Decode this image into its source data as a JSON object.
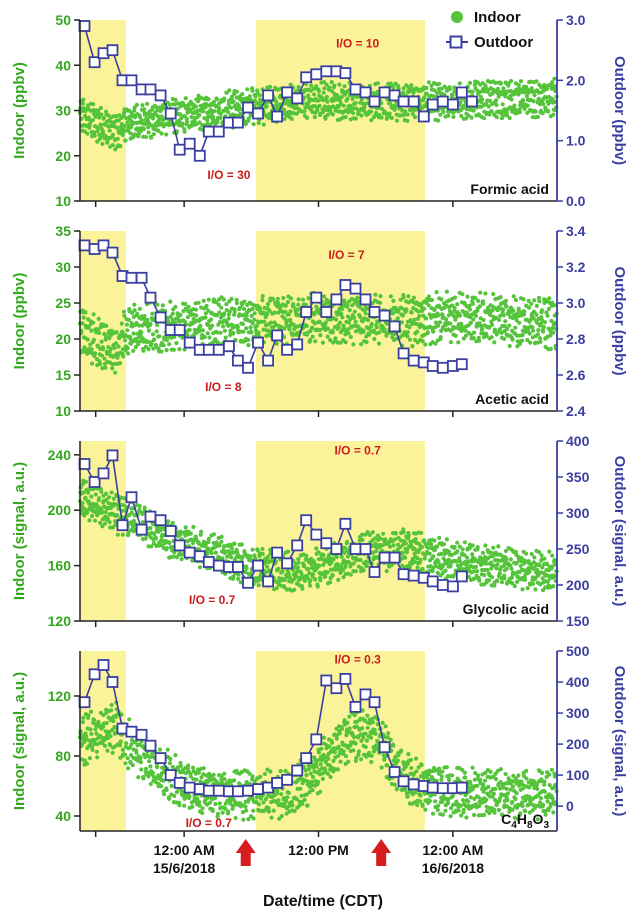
{
  "colors": {
    "indoor": "#55c43a",
    "outdoor": "#3a3fa0",
    "highlight": "#fbf39a",
    "annotation": "#cc1b1b",
    "arrow": "#d61e1e",
    "axis": "#222222",
    "left_axis_text": "#33a81e",
    "right_axis_text": "#3a3fa0"
  },
  "legend": {
    "indoor_label": "Indoor",
    "outdoor_label": "Outdoor",
    "placement": "top-right"
  },
  "shared_x": {
    "label": "Date/time (CDT)",
    "range_hours": [
      -9.3,
      33.3
    ],
    "highlight_spans": [
      [
        -9.3,
        -5.2
      ],
      [
        6.4,
        21.5
      ]
    ],
    "ticks": [
      {
        "hours": -7.9,
        "label_time": "",
        "label_date": ""
      },
      {
        "hours": 0,
        "label_time": "12:00 AM",
        "label_date": "15/6/2018"
      },
      {
        "hours": 12,
        "label_time": "12:00 PM",
        "label_date": ""
      },
      {
        "hours": 24,
        "label_time": "12:00 AM",
        "label_date": "16/6/2018"
      }
    ],
    "arrows_hours": [
      5.5,
      17.6
    ]
  },
  "chart_data": [
    {
      "type": "scatter",
      "compound": "Formic acid",
      "left_axis": {
        "label": "Indoor (ppbv)",
        "range": [
          10,
          50
        ],
        "ticks": [
          "10",
          "20",
          "30",
          "40",
          "50"
        ]
      },
      "right_axis": {
        "label": "Outdoor (ppbv)",
        "range": [
          0.0,
          3.0
        ],
        "ticks": [
          "0.0",
          "1.0",
          "2.0",
          "3.0"
        ]
      },
      "annotations": [
        {
          "text": "I/O = 10",
          "x_hours": 15.5,
          "value": 45
        },
        {
          "text": "I/O = 30",
          "x_hours": 4.0,
          "value": 16
        }
      ],
      "indoor_trend": [
        [
          -9.3,
          29
        ],
        [
          -6.0,
          25
        ],
        [
          -5.2,
          27
        ],
        [
          0,
          29
        ],
        [
          6,
          31
        ],
        [
          12,
          32
        ],
        [
          18,
          32
        ],
        [
          24,
          32
        ],
        [
          33.3,
          33
        ]
      ],
      "indoor_spread": 3.5,
      "outdoor_series": [
        [
          -8.9,
          2.9
        ],
        [
          -8.0,
          2.3
        ],
        [
          -7.2,
          2.45
        ],
        [
          -6.4,
          2.5
        ],
        [
          -5.5,
          2.0
        ],
        [
          -4.7,
          2.0
        ],
        [
          -3.8,
          1.85
        ],
        [
          -3.0,
          1.85
        ],
        [
          -2.1,
          1.75
        ],
        [
          -1.2,
          1.45
        ],
        [
          -0.4,
          0.85
        ],
        [
          0.5,
          0.95
        ],
        [
          1.4,
          0.75
        ],
        [
          2.2,
          1.15
        ],
        [
          3.1,
          1.15
        ],
        [
          4.0,
          1.3
        ],
        [
          4.8,
          1.3
        ],
        [
          5.7,
          1.55
        ],
        [
          6.6,
          1.45
        ],
        [
          7.5,
          1.75
        ],
        [
          8.3,
          1.4
        ],
        [
          9.2,
          1.8
        ],
        [
          10.1,
          1.7
        ],
        [
          10.9,
          2.05
        ],
        [
          11.8,
          2.1
        ],
        [
          12.7,
          2.15
        ],
        [
          13.6,
          2.15
        ],
        [
          14.4,
          2.12
        ],
        [
          15.3,
          1.85
        ],
        [
          16.2,
          1.8
        ],
        [
          17.0,
          1.65
        ],
        [
          17.9,
          1.8
        ],
        [
          18.8,
          1.75
        ],
        [
          19.6,
          1.65
        ],
        [
          20.5,
          1.65
        ],
        [
          21.4,
          1.4
        ],
        [
          22.2,
          1.6
        ],
        [
          23.1,
          1.65
        ],
        [
          24.0,
          1.6
        ],
        [
          24.8,
          1.8
        ],
        [
          25.7,
          1.65
        ]
      ]
    },
    {
      "type": "scatter",
      "compound": "Acetic acid",
      "left_axis": {
        "label": "Indoor (ppbv)",
        "range": [
          10,
          35
        ],
        "ticks": [
          "10",
          "15",
          "20",
          "25",
          "30",
          "35"
        ]
      },
      "right_axis": {
        "label": "Outdoor (ppbv)",
        "range": [
          2.4,
          3.4
        ],
        "ticks": [
          "2.4",
          "2.6",
          "2.8",
          "3.0",
          "3.2",
          "3.4"
        ]
      },
      "annotations": [
        {
          "text": "I/O = 7",
          "x_hours": 14.5,
          "value": 31.8
        },
        {
          "text": "I/O = 8",
          "x_hours": 3.5,
          "value": 13.5
        }
      ],
      "indoor_trend": [
        [
          -9.3,
          21
        ],
        [
          -6.0,
          18
        ],
        [
          -5.2,
          21
        ],
        [
          0,
          22
        ],
        [
          6,
          22.5
        ],
        [
          12,
          23
        ],
        [
          18,
          22.5
        ],
        [
          24,
          23
        ],
        [
          33.3,
          22
        ]
      ],
      "indoor_spread": 3.0,
      "outdoor_series": [
        [
          -8.9,
          3.32
        ],
        [
          -8.0,
          3.3
        ],
        [
          -7.2,
          3.32
        ],
        [
          -6.4,
          3.28
        ],
        [
          -5.5,
          3.15
        ],
        [
          -4.7,
          3.14
        ],
        [
          -3.8,
          3.14
        ],
        [
          -3.0,
          3.03
        ],
        [
          -2.1,
          2.92
        ],
        [
          -1.2,
          2.85
        ],
        [
          -0.4,
          2.85
        ],
        [
          0.5,
          2.78
        ],
        [
          1.4,
          2.74
        ],
        [
          2.2,
          2.74
        ],
        [
          3.1,
          2.74
        ],
        [
          4.0,
          2.76
        ],
        [
          4.8,
          2.68
        ],
        [
          5.7,
          2.64
        ],
        [
          6.6,
          2.78
        ],
        [
          7.5,
          2.68
        ],
        [
          8.3,
          2.82
        ],
        [
          9.2,
          2.74
        ],
        [
          10.1,
          2.77
        ],
        [
          10.9,
          2.95
        ],
        [
          11.8,
          3.03
        ],
        [
          12.7,
          2.95
        ],
        [
          13.6,
          3.02
        ],
        [
          14.4,
          3.1
        ],
        [
          15.3,
          3.08
        ],
        [
          16.2,
          3.02
        ],
        [
          17.0,
          2.95
        ],
        [
          17.9,
          2.93
        ],
        [
          18.8,
          2.87
        ],
        [
          19.6,
          2.72
        ],
        [
          20.5,
          2.68
        ],
        [
          21.4,
          2.67
        ],
        [
          22.2,
          2.65
        ],
        [
          23.1,
          2.64
        ],
        [
          24.0,
          2.65
        ],
        [
          24.8,
          2.66
        ]
      ]
    },
    {
      "type": "scatter",
      "compound": "Glycolic acid",
      "left_axis": {
        "label": "Indoor (signal, a.u.)",
        "range": [
          120,
          250
        ],
        "ticks": [
          "120",
          "160",
          "200",
          "240"
        ]
      },
      "right_axis": {
        "label": "Outdoor (signal, a.u.)",
        "range": [
          150,
          400
        ],
        "ticks": [
          "150",
          "200",
          "250",
          "300",
          "350",
          "400"
        ]
      },
      "annotations": [
        {
          "text": "I/O = 0.7",
          "x_hours": 15.5,
          "value": 244
        },
        {
          "text": "I/O = 0.7",
          "x_hours": 2.5,
          "value": 136
        }
      ],
      "indoor_trend": [
        [
          -9.3,
          208
        ],
        [
          -5.2,
          195
        ],
        [
          0,
          175
        ],
        [
          6,
          160
        ],
        [
          10,
          155
        ],
        [
          13,
          160
        ],
        [
          16,
          170
        ],
        [
          20,
          172
        ],
        [
          24,
          163
        ],
        [
          33.3,
          155
        ]
      ],
      "indoor_spread": 12,
      "outdoor_series": [
        [
          -8.9,
          368
        ],
        [
          -8.0,
          343
        ],
        [
          -7.2,
          355
        ],
        [
          -6.4,
          380
        ],
        [
          -5.5,
          283
        ],
        [
          -4.7,
          322
        ],
        [
          -3.8,
          277
        ],
        [
          -3.0,
          295
        ],
        [
          -2.1,
          290
        ],
        [
          -1.2,
          275
        ],
        [
          -0.4,
          255
        ],
        [
          0.5,
          245
        ],
        [
          1.4,
          240
        ],
        [
          2.2,
          232
        ],
        [
          3.1,
          227
        ],
        [
          4.0,
          225
        ],
        [
          4.8,
          225
        ],
        [
          5.7,
          203
        ],
        [
          6.6,
          227
        ],
        [
          7.5,
          205
        ],
        [
          8.3,
          245
        ],
        [
          9.2,
          230
        ],
        [
          10.1,
          255
        ],
        [
          10.9,
          290
        ],
        [
          11.8,
          270
        ],
        [
          12.7,
          258
        ],
        [
          13.6,
          250
        ],
        [
          14.4,
          285
        ],
        [
          15.3,
          250
        ],
        [
          16.2,
          250
        ],
        [
          17.0,
          218
        ],
        [
          17.9,
          238
        ],
        [
          18.8,
          238
        ],
        [
          19.6,
          215
        ],
        [
          20.5,
          213
        ],
        [
          21.4,
          210
        ],
        [
          22.2,
          205
        ],
        [
          23.1,
          200
        ],
        [
          24.0,
          198
        ],
        [
          24.8,
          212
        ]
      ]
    },
    {
      "type": "scatter",
      "compound": "C4H8O3",
      "compound_formula": {
        "base": "C",
        "parts": [
          [
            "4",
            "H"
          ],
          [
            "8",
            "O"
          ],
          [
            "3",
            ""
          ]
        ]
      },
      "left_axis": {
        "label": "Indoor (signal, a.u.)",
        "range": [
          30,
          150
        ],
        "ticks": [
          "40",
          "80",
          "120"
        ]
      },
      "right_axis": {
        "label": "Outdoor (signal, a.u.)",
        "range": [
          -80,
          500
        ],
        "ticks": [
          "0",
          "100",
          "200",
          "300",
          "400",
          "500"
        ]
      },
      "annotations": [
        {
          "text": "I/O = 0.3",
          "x_hours": 15.5,
          "value": 145
        },
        {
          "text": "I/O = 0.7",
          "x_hours": 2.2,
          "value": 36
        }
      ],
      "indoor_trend": [
        [
          -9.3,
          90
        ],
        [
          -6.0,
          100
        ],
        [
          -5.2,
          90
        ],
        [
          -2,
          70
        ],
        [
          0,
          60
        ],
        [
          4,
          55
        ],
        [
          9,
          55
        ],
        [
          11,
          62
        ],
        [
          13,
          80
        ],
        [
          14.5,
          92
        ],
        [
          16,
          95
        ],
        [
          17.5,
          90
        ],
        [
          19,
          70
        ],
        [
          21,
          60
        ],
        [
          24,
          55
        ],
        [
          33.3,
          55
        ]
      ],
      "indoor_spread": 14,
      "outdoor_series": [
        [
          -8.9,
          335
        ],
        [
          -8.0,
          425
        ],
        [
          -7.2,
          455
        ],
        [
          -6.4,
          400
        ],
        [
          -5.5,
          250
        ],
        [
          -4.7,
          240
        ],
        [
          -3.8,
          230
        ],
        [
          -3.0,
          195
        ],
        [
          -2.1,
          155
        ],
        [
          -1.2,
          100
        ],
        [
          -0.4,
          75
        ],
        [
          0.5,
          60
        ],
        [
          1.4,
          55
        ],
        [
          2.2,
          50
        ],
        [
          3.1,
          50
        ],
        [
          4.0,
          48
        ],
        [
          4.8,
          48
        ],
        [
          5.7,
          50
        ],
        [
          6.6,
          55
        ],
        [
          7.5,
          60
        ],
        [
          8.3,
          75
        ],
        [
          9.2,
          85
        ],
        [
          10.1,
          115
        ],
        [
          10.9,
          155
        ],
        [
          11.8,
          215
        ],
        [
          12.7,
          405
        ],
        [
          13.6,
          380
        ],
        [
          14.4,
          410
        ],
        [
          15.3,
          320
        ],
        [
          16.2,
          360
        ],
        [
          17.0,
          335
        ],
        [
          17.9,
          190
        ],
        [
          18.8,
          110
        ],
        [
          19.6,
          80
        ],
        [
          20.5,
          70
        ],
        [
          21.4,
          65
        ],
        [
          22.2,
          60
        ],
        [
          23.1,
          58
        ],
        [
          24.0,
          58
        ],
        [
          24.8,
          60
        ]
      ]
    }
  ]
}
